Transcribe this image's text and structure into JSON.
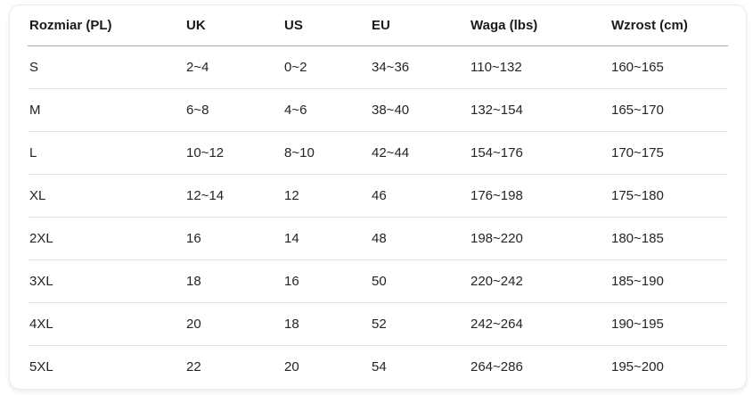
{
  "table": {
    "columns": [
      "Rozmiar (PL)",
      "UK",
      "US",
      "EU",
      "Waga (lbs)",
      "Wzrost (cm)"
    ],
    "rows": [
      [
        "S",
        "2~4",
        "0~2",
        "34~36",
        "110~132",
        "160~165"
      ],
      [
        "M",
        "6~8",
        "4~6",
        "38~40",
        "132~154",
        "165~170"
      ],
      [
        "L",
        "10~12",
        "8~10",
        "42~44",
        "154~176",
        "170~175"
      ],
      [
        "XL",
        "12~14",
        "12",
        "46",
        "176~198",
        "175~180"
      ],
      [
        "2XL",
        "16",
        "14",
        "48",
        "198~220",
        "180~185"
      ],
      [
        "3XL",
        "18",
        "16",
        "50",
        "220~242",
        "185~190"
      ],
      [
        "4XL",
        "20",
        "18",
        "52",
        "242~264",
        "190~195"
      ],
      [
        "5XL",
        "22",
        "20",
        "54",
        "264~286",
        "195~200"
      ]
    ]
  },
  "colors": {
    "card_background": "#ffffff",
    "card_border": "#eaeaec",
    "header_rule": "#a9a9ae",
    "row_rule": "#e5e5e8",
    "header_text": "#1a1a1a",
    "body_text": "#242424"
  }
}
